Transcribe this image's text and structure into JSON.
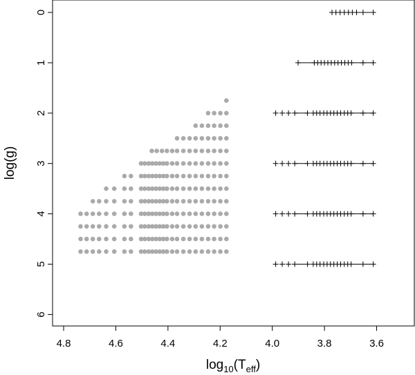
{
  "chart_data": {
    "type": "scatter",
    "xlabel": "log10(Teff)",
    "xlabel_parts": {
      "base": "log",
      "base_sub": "10",
      "open": "(T",
      "t_sub": "eff",
      "close": ")"
    },
    "ylabel": "log(g)",
    "xlim": [
      4.9,
      3.5
    ],
    "ylim": [
      6.25,
      -0.2
    ],
    "x_reversed": true,
    "y_reversed": true,
    "grid": false,
    "x_ticks": [
      4.8,
      4.6,
      4.4,
      4.2,
      4.0,
      3.8,
      3.6
    ],
    "x_tick_labels": [
      "4.8",
      "4.6",
      "4.4",
      "4.2",
      "4.0",
      "3.8",
      "3.6"
    ],
    "y_ticks": [
      0,
      1,
      2,
      3,
      4,
      5,
      6
    ],
    "y_tick_labels": [
      "0",
      "1",
      "2",
      "3",
      "4",
      "5",
      "6"
    ],
    "colors": {
      "dots": "#aaaaaa",
      "plus": "#000000",
      "axis": "#000000"
    },
    "series": [
      {
        "marker": "filled-circle",
        "color": "#aaaaaa",
        "rows": [
          {
            "y": 1.75,
            "x": [
              4.176
            ]
          },
          {
            "y": 2.0,
            "x": [
              4.176,
              4.199,
              4.223,
              4.246
            ]
          },
          {
            "y": 2.25,
            "x": [
              4.176,
              4.199,
              4.223,
              4.246,
              4.27,
              4.294
            ]
          },
          {
            "y": 2.5,
            "x": [
              4.176,
              4.199,
              4.223,
              4.246,
              4.27,
              4.294,
              4.317,
              4.341,
              4.365
            ]
          },
          {
            "y": 2.75,
            "x": [
              4.176,
              4.199,
              4.223,
              4.246,
              4.27,
              4.294,
              4.317,
              4.341,
              4.365,
              4.384,
              4.404,
              4.423,
              4.443,
              4.462
            ]
          },
          {
            "y": 3.0,
            "x": [
              4.176,
              4.199,
              4.223,
              4.246,
              4.27,
              4.294,
              4.317,
              4.341,
              4.365,
              4.384,
              4.404,
              4.418,
              4.432,
              4.446,
              4.46,
              4.474,
              4.489,
              4.503
            ]
          },
          {
            "y": 3.25,
            "x": [
              4.176,
              4.199,
              4.223,
              4.246,
              4.27,
              4.294,
              4.317,
              4.341,
              4.365,
              4.384,
              4.404,
              4.418,
              4.432,
              4.446,
              4.46,
              4.474,
              4.489,
              4.503,
              4.542,
              4.567
            ]
          },
          {
            "y": 3.5,
            "x": [
              4.176,
              4.199,
              4.223,
              4.246,
              4.27,
              4.294,
              4.317,
              4.341,
              4.365,
              4.384,
              4.404,
              4.418,
              4.432,
              4.446,
              4.46,
              4.474,
              4.489,
              4.503,
              4.542,
              4.567,
              4.606,
              4.637
            ]
          },
          {
            "y": 3.75,
            "x": [
              4.176,
              4.199,
              4.223,
              4.246,
              4.27,
              4.294,
              4.317,
              4.341,
              4.365,
              4.384,
              4.404,
              4.418,
              4.432,
              4.446,
              4.46,
              4.474,
              4.489,
              4.503,
              4.542,
              4.567,
              4.606,
              4.637,
              4.664,
              4.688
            ]
          },
          {
            "y": 4.0,
            "x": [
              4.176,
              4.199,
              4.223,
              4.246,
              4.27,
              4.294,
              4.317,
              4.341,
              4.365,
              4.384,
              4.404,
              4.418,
              4.432,
              4.446,
              4.46,
              4.474,
              4.489,
              4.503,
              4.542,
              4.567,
              4.606,
              4.637,
              4.664,
              4.688,
              4.712,
              4.735
            ]
          },
          {
            "y": 4.25,
            "x": [
              4.176,
              4.199,
              4.223,
              4.246,
              4.27,
              4.294,
              4.317,
              4.341,
              4.365,
              4.384,
              4.404,
              4.418,
              4.432,
              4.446,
              4.46,
              4.474,
              4.489,
              4.503,
              4.542,
              4.567,
              4.606,
              4.637,
              4.664,
              4.688,
              4.712,
              4.735
            ]
          },
          {
            "y": 4.5,
            "x": [
              4.176,
              4.199,
              4.223,
              4.246,
              4.27,
              4.294,
              4.317,
              4.341,
              4.365,
              4.384,
              4.404,
              4.418,
              4.432,
              4.446,
              4.46,
              4.474,
              4.489,
              4.503,
              4.542,
              4.567,
              4.606,
              4.637,
              4.664,
              4.688,
              4.712,
              4.735
            ]
          },
          {
            "y": 4.75,
            "x": [
              4.176,
              4.199,
              4.223,
              4.246,
              4.27,
              4.294,
              4.317,
              4.341,
              4.365,
              4.384,
              4.404,
              4.418,
              4.432,
              4.446,
              4.46,
              4.474,
              4.489,
              4.503,
              4.542,
              4.567,
              4.606,
              4.637,
              4.664,
              4.688,
              4.712,
              4.735
            ]
          }
        ]
      },
      {
        "marker": "plus",
        "color": "#000000",
        "rows": [
          {
            "y": 0,
            "x": [
              3.771,
              3.756,
              3.74,
              3.724,
              3.708,
              3.693,
              3.677,
              3.652,
              3.613
            ]
          },
          {
            "y": 1,
            "x": [
              3.901,
              3.839,
              3.826,
              3.813,
              3.8,
              3.787,
              3.774,
              3.761,
              3.748,
              3.735,
              3.722,
              3.709,
              3.696,
              3.652,
              3.613
            ]
          },
          {
            "y": 2,
            "x": [
              3.987,
              3.962,
              3.938,
              3.914,
              3.865,
              3.843,
              3.83,
              3.817,
              3.803,
              3.79,
              3.777,
              3.764,
              3.751,
              3.738,
              3.724,
              3.711,
              3.698,
              3.652,
              3.613
            ]
          },
          {
            "y": 3,
            "x": [
              3.987,
              3.962,
              3.938,
              3.914,
              3.865,
              3.843,
              3.83,
              3.817,
              3.803,
              3.79,
              3.777,
              3.764,
              3.751,
              3.738,
              3.724,
              3.711,
              3.698,
              3.652,
              3.613
            ]
          },
          {
            "y": 4,
            "x": [
              3.987,
              3.962,
              3.938,
              3.914,
              3.865,
              3.843,
              3.83,
              3.817,
              3.803,
              3.79,
              3.777,
              3.764,
              3.751,
              3.738,
              3.724,
              3.711,
              3.698,
              3.652,
              3.613
            ]
          },
          {
            "y": 5,
            "x": [
              3.987,
              3.962,
              3.938,
              3.914,
              3.865,
              3.843,
              3.83,
              3.817,
              3.803,
              3.79,
              3.777,
              3.764,
              3.751,
              3.738,
              3.724,
              3.711,
              3.698,
              3.652,
              3.613
            ]
          }
        ],
        "segments": [
          {
            "y": 1,
            "x": [
              3.901,
              3.839
            ]
          },
          {
            "y": 2,
            "x": [
              3.914,
              3.865
            ]
          },
          {
            "y": 3,
            "x": [
              3.914,
              3.865
            ]
          },
          {
            "y": 4,
            "x": [
              3.914,
              3.865
            ]
          },
          {
            "y": 5,
            "x": [
              3.914,
              3.865
            ]
          },
          {
            "y": 1,
            "x": [
              3.696,
              3.613
            ]
          },
          {
            "y": 2,
            "x": [
              3.698,
              3.613
            ]
          },
          {
            "y": 3,
            "x": [
              3.698,
              3.613
            ]
          },
          {
            "y": 4,
            "x": [
              3.698,
              3.613
            ]
          },
          {
            "y": 5,
            "x": [
              3.698,
              3.613
            ]
          },
          {
            "y": 0,
            "x": [
              3.677,
              3.613
            ]
          }
        ]
      }
    ]
  }
}
